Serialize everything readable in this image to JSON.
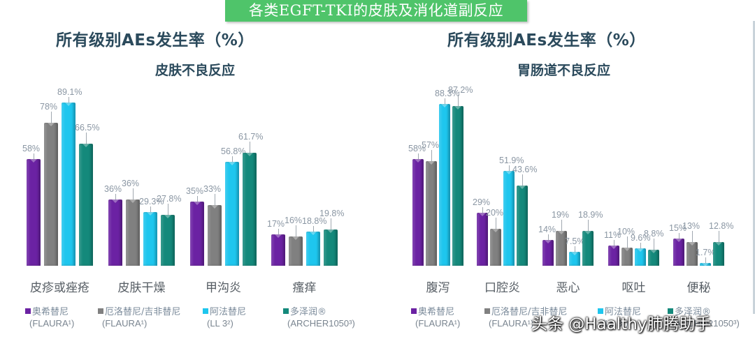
{
  "banner": {
    "title": "各类EGFT-TKI的皮肤及消化道副反应"
  },
  "colors": {
    "osimertinib": "#6b22a3",
    "erlotinib_gefitinib": "#808080",
    "afatinib": "#1ec6ee",
    "dacomitinib": "#14897b",
    "banner_bg": "#4fc46a",
    "title_text": "#2b4a5c"
  },
  "legend": [
    {
      "name": "奥希替尼",
      "sub": "(FLAURA¹)",
      "color": "#6b22a3"
    },
    {
      "name": "厄洛替尼/吉非替尼",
      "sub": "(FLAURA¹)",
      "color": "#808080"
    },
    {
      "name": "阿法替尼",
      "sub": "(LL 3²)",
      "color": "#1ec6ee"
    },
    {
      "name": "多泽润®",
      "sub": "(ARCHER1050³)",
      "color": "#14897b"
    }
  ],
  "left_chart": {
    "title": "所有级别AEs发生率（%）",
    "subtitle": "皮肤不良反应"
  },
  "right_chart": {
    "title": "所有级别AEs发生率（%）",
    "subtitle": "胃肠道不良反应"
  },
  "watermark": "头条 @Haalthy肺腾助手",
  "chart_data": [
    {
      "type": "bar",
      "title": "所有级别AEs发生率（%）",
      "subtitle": "皮肤不良反应",
      "xlabel": "",
      "ylabel": "所有级别AEs发生率（%）",
      "ylim": [
        0,
        100
      ],
      "grid": false,
      "legend_position": "bottom",
      "categories": [
        "皮疹或痤疮",
        "皮肤干燥",
        "甲沟炎",
        "瘙痒"
      ],
      "series": [
        {
          "name": "奥希替尼 (FLAURA¹)",
          "values": [
            58,
            36,
            35,
            17
          ],
          "labels": [
            "58%",
            "36%",
            "35%",
            "17%"
          ]
        },
        {
          "name": "厄洛替尼/吉非替尼 (FLAURA¹)",
          "values": [
            78,
            36,
            33,
            16
          ],
          "labels": [
            "78%",
            "36%",
            "33%",
            "16%"
          ]
        },
        {
          "name": "阿法替尼 (LL 3²)",
          "values": [
            89.1,
            29.3,
            56.8,
            18.8
          ],
          "labels": [
            "89.1%",
            "29.3%",
            "56.8%",
            "18.8%"
          ]
        },
        {
          "name": "多泽润® (ARCHER1050³)",
          "values": [
            66.5,
            27.8,
            61.7,
            19.8
          ],
          "labels": [
            "66.5%",
            "27.8%",
            "61.7%",
            "19.8%"
          ]
        }
      ]
    },
    {
      "type": "bar",
      "title": "所有级别AEs发生率（%）",
      "subtitle": "胃肠道不良反应",
      "xlabel": "",
      "ylabel": "所有级别AEs发生率（%）",
      "ylim": [
        0,
        100
      ],
      "grid": false,
      "legend_position": "bottom",
      "categories": [
        "腹泻",
        "口腔炎",
        "恶心",
        "呕吐",
        "便秘"
      ],
      "series": [
        {
          "name": "奥希替尼 (FLAURA¹)",
          "values": [
            58,
            29,
            14,
            11,
            15
          ],
          "labels": [
            "58%",
            "29%",
            "14%",
            "11%",
            "15%"
          ]
        },
        {
          "name": "厄洛替尼/吉非替尼 (FLAURA¹)",
          "values": [
            57,
            20,
            19,
            10,
            13
          ],
          "labels": [
            "57%",
            "20%",
            "19%",
            "10%",
            "13%"
          ]
        },
        {
          "name": "阿法替尼 (LL 3²)",
          "values": [
            88.3,
            51.9,
            7.5,
            9.6,
            1.7
          ],
          "labels": [
            "88.3%",
            "51.9%",
            "7.5%",
            "9.6%",
            "1.7%"
          ]
        },
        {
          "name": "多泽润® (ARCHER1050³)",
          "values": [
            87.2,
            43.6,
            18.9,
            8.8,
            12.8
          ],
          "labels": [
            "87.2%",
            "43.6%",
            "18.9%",
            "8.8%",
            "12.8%"
          ]
        }
      ]
    }
  ]
}
